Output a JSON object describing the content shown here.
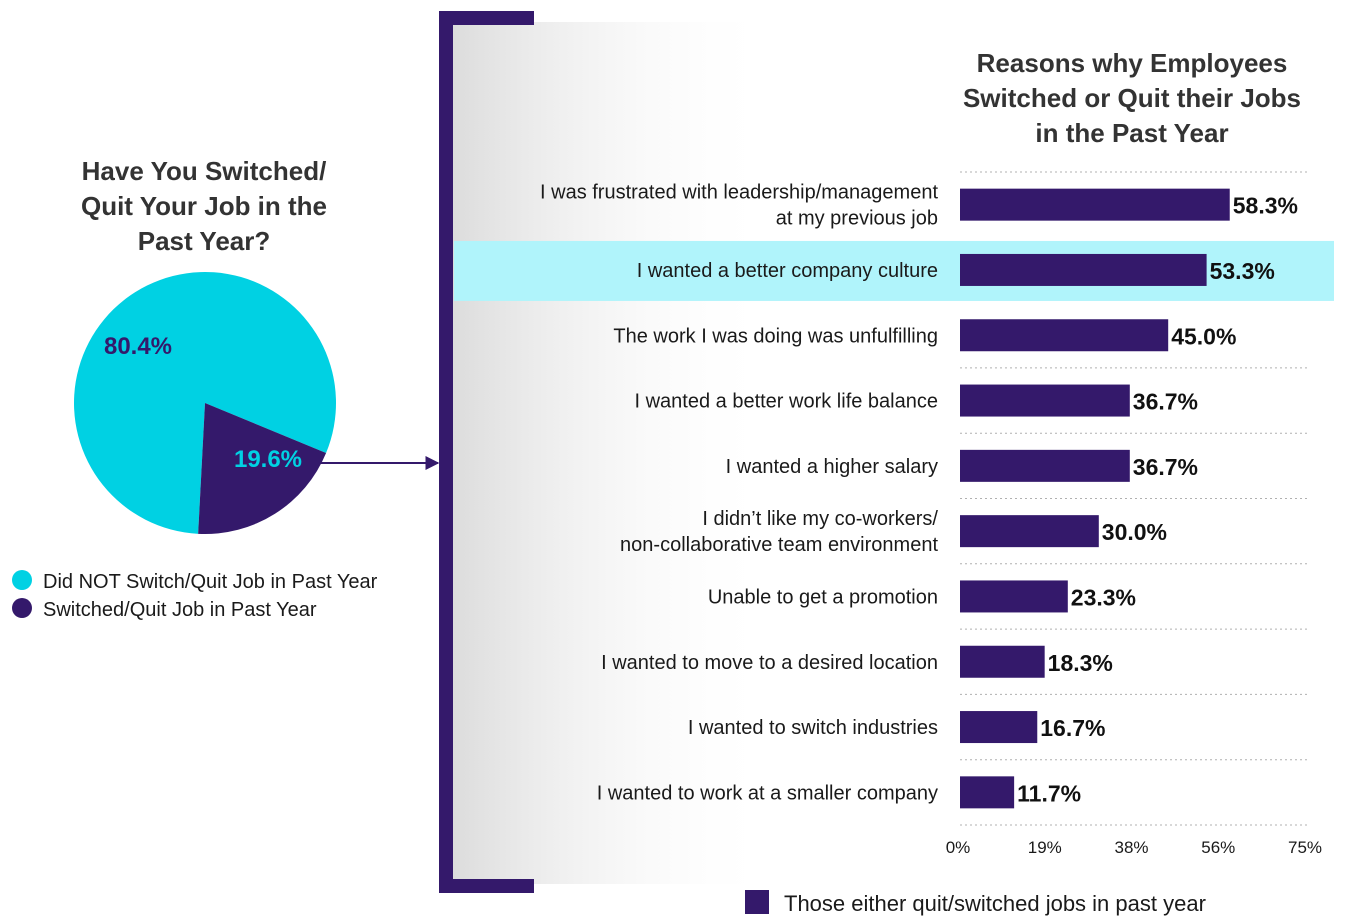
{
  "colors": {
    "cyan": "#00d1e3",
    "purple": "#34196b",
    "highlight": "#b0f4fb",
    "bracket": "#34196b",
    "gridline": "#b0b0b0"
  },
  "chart_data": [
    {
      "type": "pie",
      "title": "Have You Switched/ Quit Your Job in the Past Year?",
      "title_lines": [
        "Have You Switched/",
        "Quit Your Job in the",
        "Past Year?"
      ],
      "slices": [
        {
          "name": "Did NOT Switch/Quit Job in Past Year",
          "value": 80.4,
          "label": "80.4%",
          "color": "#00d1e3"
        },
        {
          "name": "Switched/Quit Job in Past Year",
          "value": 19.6,
          "label": "19.6%",
          "color": "#34196b"
        }
      ],
      "legend": [
        {
          "label": "Did NOT Switch/Quit Job in Past Year",
          "color": "#00d1e3"
        },
        {
          "label": "Switched/Quit Job in Past Year",
          "color": "#34196b"
        }
      ],
      "legend_position": "bottom"
    },
    {
      "type": "bar",
      "orientation": "horizontal",
      "title": "Reasons why Employees Switched or Quit their Jobs in the Past Year",
      "title_lines": [
        "Reasons why Employees",
        "Switched or Quit their Jobs",
        "in the Past Year"
      ],
      "categories": [
        [
          "I was frustrated with leadership/management",
          "at my previous job"
        ],
        [
          "I wanted a better company culture"
        ],
        [
          "The work I was doing was unfulfilling"
        ],
        [
          "I wanted a better work life balance"
        ],
        [
          "I wanted a higher salary"
        ],
        [
          "I didn’t like my co-workers/",
          "non-collaborative team environment"
        ],
        [
          "Unable to get a promotion"
        ],
        [
          "I wanted to move to a desired location"
        ],
        [
          "I wanted to switch industries"
        ],
        [
          "I wanted to work at a smaller company"
        ]
      ],
      "series": [
        {
          "name": "Those either quit/switched jobs in past year",
          "color": "#34196b",
          "values": [
            58.3,
            53.3,
            45.0,
            36.7,
            36.7,
            30.0,
            23.3,
            18.3,
            16.7,
            11.7
          ],
          "value_labels": [
            "58.3%",
            "53.3%",
            "45.0%",
            "36.7%",
            "36.7%",
            "30.0%",
            "23.3%",
            "18.3%",
            "16.7%",
            "11.7%"
          ]
        }
      ],
      "highlighted_index": 1,
      "xlim": [
        0,
        75
      ],
      "xticks": [
        0,
        18.75,
        37.5,
        56.25,
        75
      ],
      "xtick_labels": [
        "0%",
        "19%",
        "38%",
        "56%",
        "75%"
      ],
      "grid": "horizontal dotted separators",
      "legend_position": "bottom"
    }
  ]
}
